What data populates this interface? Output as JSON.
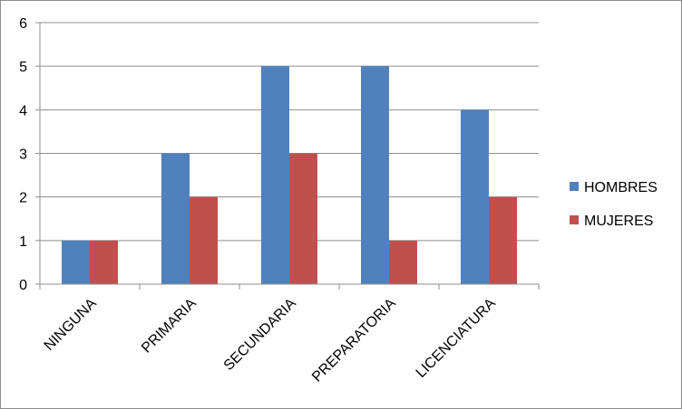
{
  "chart_data": {
    "type": "bar",
    "categories": [
      "NINGUNA",
      "PRIMARIA",
      "SECUNDARIA",
      "PREPARATORIA",
      "LICENCIATURA"
    ],
    "series": [
      {
        "name": "HOMBRES",
        "values": [
          1,
          3,
          5,
          5,
          4
        ],
        "color": "#4F81BD"
      },
      {
        "name": "MUJERES",
        "values": [
          1,
          2,
          3,
          1,
          2
        ],
        "color": "#C0504D"
      }
    ],
    "ylim": [
      0,
      6
    ],
    "yticks": [
      "0",
      "1",
      "2",
      "3",
      "4",
      "5",
      "6"
    ],
    "grid": true,
    "legend": "right"
  }
}
